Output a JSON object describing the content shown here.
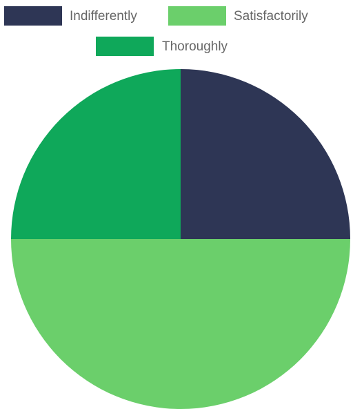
{
  "chart_data": {
    "type": "pie",
    "title": "",
    "legend": {
      "position": "top"
    },
    "slices": [
      {
        "label": "Indifferently",
        "value": 25,
        "color": "#2e3655"
      },
      {
        "label": "Satisfactorily",
        "value": 50,
        "color": "#6bcf6b"
      },
      {
        "label": "Thoroughly",
        "value": 25,
        "color": "#0fa85a"
      }
    ]
  }
}
